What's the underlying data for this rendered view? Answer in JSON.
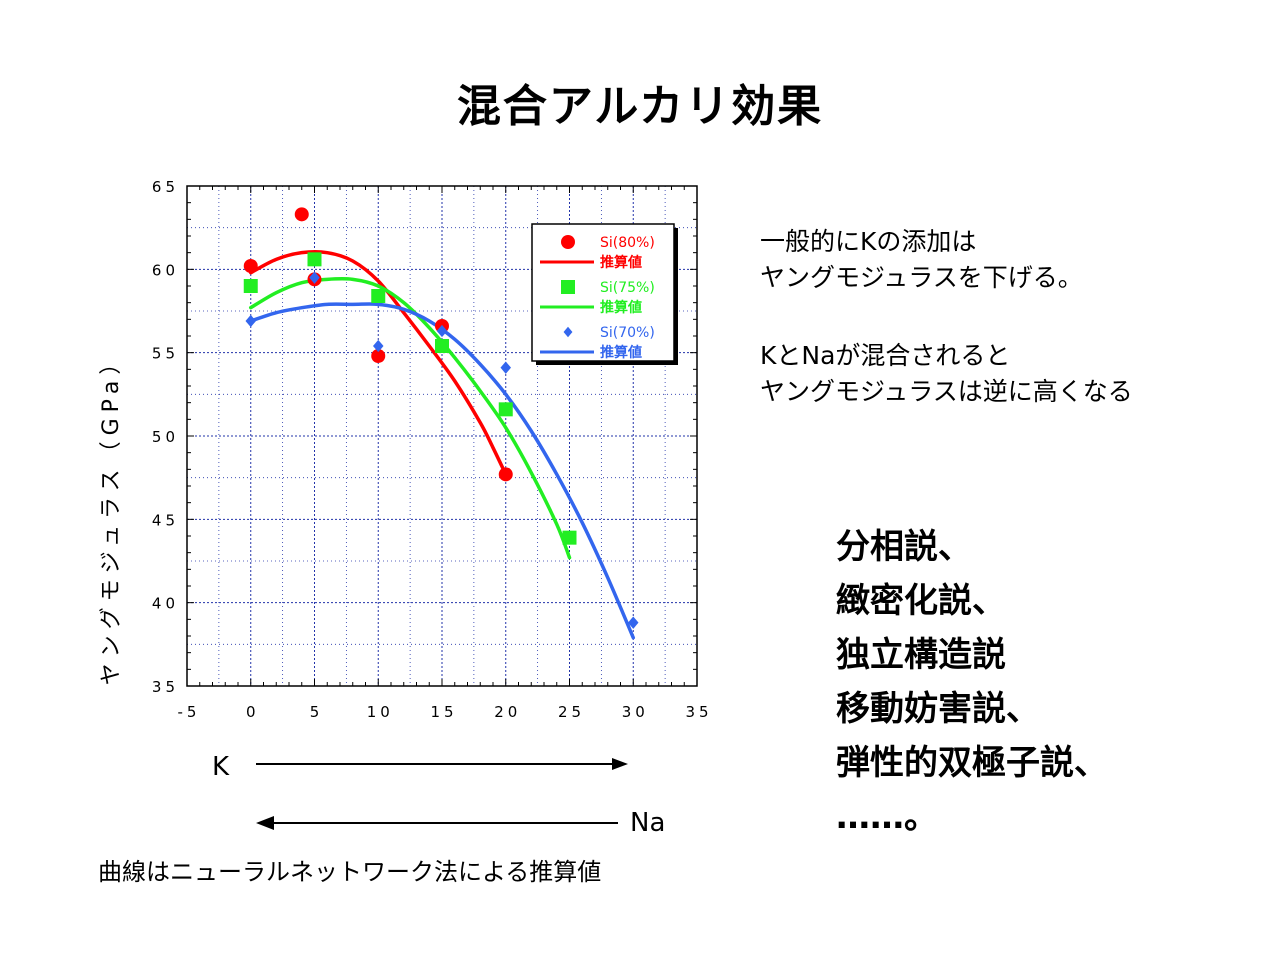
{
  "slide": {
    "title": "混合アルカリ効果",
    "note_line1": "一般的にKの添加は",
    "note_line2": "ヤングモジュラスを下げる。",
    "note_line3": "KとNaが混合されると",
    "note_line4": "ヤングモジュラスは逆に高くなる",
    "theories": [
      "分相説、",
      "緻密化説、",
      "独立構造説",
      "移動妨害説、",
      "弾性的双極子説、",
      "……。"
    ],
    "k_label": "K",
    "na_label": "Na",
    "caption": "曲線はニューラルネットワーク法による推算値"
  },
  "chart_data": {
    "type": "scatter",
    "xlabel": "",
    "ylabel": "ヤングモジュラス（GPa）",
    "xlim": [
      -5,
      35
    ],
    "ylim": [
      35,
      65
    ],
    "xticks": [
      -5,
      0,
      5,
      10,
      15,
      20,
      25,
      30,
      35
    ],
    "yticks": [
      35,
      40,
      45,
      50,
      55,
      60,
      65
    ],
    "grid": true,
    "legend_position": "top-right",
    "series": [
      {
        "name": "Si(80%)",
        "fit_name": "推算値",
        "color": "#ff0000",
        "marker": "circle",
        "points": [
          [
            0,
            60.2
          ],
          [
            4,
            63.3
          ],
          [
            5,
            59.4
          ],
          [
            10,
            54.8
          ],
          [
            15,
            56.6
          ],
          [
            20,
            47.7
          ]
        ],
        "fit": [
          [
            0,
            59.8
          ],
          [
            2,
            60.6
          ],
          [
            4,
            61.0
          ],
          [
            6,
            61.0
          ],
          [
            8,
            60.5
          ],
          [
            10,
            59.3
          ],
          [
            12,
            57.4
          ],
          [
            14,
            55.4
          ],
          [
            16,
            53.3
          ],
          [
            18,
            50.8
          ],
          [
            19,
            49.3
          ],
          [
            20,
            47.7
          ]
        ]
      },
      {
        "name": "Si(75%)",
        "fit_name": "推算値",
        "color": "#22ee22",
        "marker": "square",
        "points": [
          [
            0,
            59.0
          ],
          [
            5,
            60.6
          ],
          [
            10,
            58.4
          ],
          [
            15,
            55.4
          ],
          [
            20,
            51.6
          ],
          [
            25,
            43.9
          ]
        ],
        "fit": [
          [
            0,
            57.7
          ],
          [
            2,
            58.6
          ],
          [
            4,
            59.2
          ],
          [
            6,
            59.4
          ],
          [
            8,
            59.4
          ],
          [
            10,
            59.0
          ],
          [
            12,
            58.0
          ],
          [
            14,
            56.5
          ],
          [
            16,
            54.7
          ],
          [
            18,
            52.7
          ],
          [
            20,
            50.5
          ],
          [
            22,
            47.8
          ],
          [
            24,
            44.7
          ],
          [
            25,
            42.7
          ]
        ]
      },
      {
        "name": "Si(70%)",
        "fit_name": "推算値",
        "color": "#3366ee",
        "marker": "diamond",
        "points": [
          [
            0,
            56.9
          ],
          [
            5,
            59.5
          ],
          [
            10,
            55.4
          ],
          [
            15,
            56.3
          ],
          [
            20,
            54.1
          ],
          [
            30,
            38.8
          ]
        ],
        "fit": [
          [
            0,
            56.9
          ],
          [
            2,
            57.4
          ],
          [
            4,
            57.7
          ],
          [
            6,
            57.9
          ],
          [
            8,
            57.9
          ],
          [
            10,
            57.9
          ],
          [
            12,
            57.6
          ],
          [
            14,
            56.9
          ],
          [
            16,
            55.8
          ],
          [
            18,
            54.3
          ],
          [
            20,
            52.5
          ],
          [
            22,
            50.3
          ],
          [
            24,
            47.7
          ],
          [
            26,
            44.8
          ],
          [
            28,
            41.5
          ],
          [
            30,
            37.9
          ]
        ]
      }
    ]
  }
}
